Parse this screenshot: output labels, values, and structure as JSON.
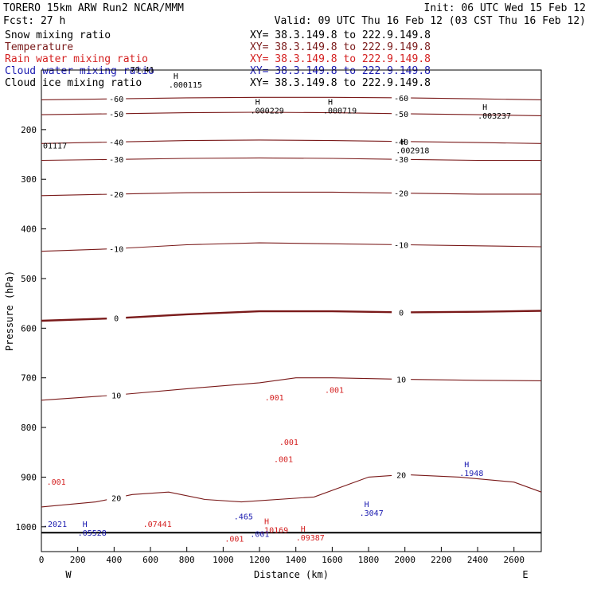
{
  "header": {
    "model": "TORERO  15km ARW   Run2    NCAR/MMM",
    "init": "Init: 06 UTC Wed 15 Feb 12",
    "fcst": "Fcst:   27 h",
    "valid": "Valid: 09 UTC Thu 16 Feb 12 (03 CST Thu 16 Feb 12)"
  },
  "colors": {
    "snow": "#000000",
    "temperature": "#7a1a1a",
    "rain": "#d42020",
    "cloud_water": "#1a1ab0",
    "cloud_ice": "#000000",
    "freezing_line": "#7a1a1a"
  },
  "legend": [
    {
      "name": "Snow mixing ratio",
      "color": "#000000",
      "xy": "XY=  38.3.149.8 to 222.9.149.8"
    },
    {
      "name": "Temperature",
      "color": "#7a1a1a",
      "xy": "XY=  38.3.149.8 to 222.9.149.8"
    },
    {
      "name": "Rain water mixing ratio",
      "color": "#d42020",
      "xy": "XY=  38.3.149.8 to 222.9.149.8"
    },
    {
      "name": "Cloud water mixing ratio",
      "color": "#1a1ab0",
      "xy": "XY=  38.3.149.8 to 222.9.149.8"
    },
    {
      "name": "Cloud ice mixing ratio",
      "color": "#000000",
      "xy": "XY=  38.3.149.8 to 222.9.149.8"
    }
  ],
  "chart_data": {
    "type": "line",
    "xlabel": "Distance (km)",
    "ylabel": "Pressure (hPa)",
    "xlim": [
      0,
      2750
    ],
    "ylim": [
      1050,
      80
    ],
    "x_ticks": [
      0,
      200,
      400,
      600,
      800,
      1000,
      1200,
      1400,
      1600,
      1800,
      2000,
      2200,
      2400,
      2600
    ],
    "y_ticks": [
      200,
      300,
      400,
      500,
      600,
      700,
      800,
      900,
      1000
    ],
    "x_end_labels": {
      "left": "W",
      "right": "E"
    },
    "isotherms": [
      {
        "value": -60,
        "points": [
          [
            0,
            140
          ],
          [
            400,
            138
          ],
          [
            800,
            136
          ],
          [
            1200,
            135
          ],
          [
            1600,
            135
          ],
          [
            2000,
            136
          ],
          [
            2400,
            138
          ],
          [
            2750,
            140
          ]
        ]
      },
      {
        "value": -50,
        "points": [
          [
            0,
            170
          ],
          [
            400,
            168
          ],
          [
            800,
            166
          ],
          [
            1200,
            165
          ],
          [
            1600,
            166
          ],
          [
            2000,
            168
          ],
          [
            2400,
            170
          ],
          [
            2750,
            172
          ]
        ]
      },
      {
        "value": -40,
        "points": [
          [
            0,
            228
          ],
          [
            400,
            225
          ],
          [
            800,
            222
          ],
          [
            1200,
            221
          ],
          [
            1600,
            222
          ],
          [
            2000,
            224
          ],
          [
            2400,
            226
          ],
          [
            2750,
            228
          ]
        ]
      },
      {
        "value": -30,
        "points": [
          [
            0,
            262
          ],
          [
            400,
            260
          ],
          [
            800,
            258
          ],
          [
            1200,
            257
          ],
          [
            1600,
            258
          ],
          [
            2000,
            260
          ],
          [
            2400,
            262
          ],
          [
            2750,
            262
          ]
        ]
      },
      {
        "value": -20,
        "points": [
          [
            0,
            333
          ],
          [
            400,
            330
          ],
          [
            800,
            327
          ],
          [
            1200,
            326
          ],
          [
            1600,
            326
          ],
          [
            2000,
            328
          ],
          [
            2400,
            330
          ],
          [
            2750,
            330
          ]
        ]
      },
      {
        "value": -10,
        "points": [
          [
            0,
            445
          ],
          [
            400,
            440
          ],
          [
            800,
            432
          ],
          [
            1200,
            428
          ],
          [
            1600,
            430
          ],
          [
            2000,
            432
          ],
          [
            2400,
            434
          ],
          [
            2750,
            436
          ]
        ]
      },
      {
        "value": 0,
        "points": [
          [
            0,
            585
          ],
          [
            400,
            580
          ],
          [
            800,
            572
          ],
          [
            1200,
            566
          ],
          [
            1600,
            566
          ],
          [
            2000,
            568
          ],
          [
            2400,
            567
          ],
          [
            2750,
            565
          ]
        ]
      },
      {
        "value": 10,
        "points": [
          [
            0,
            745
          ],
          [
            400,
            735
          ],
          [
            800,
            722
          ],
          [
            1200,
            710
          ],
          [
            1400,
            700
          ],
          [
            1600,
            700
          ],
          [
            2000,
            703
          ],
          [
            2400,
            705
          ],
          [
            2750,
            706
          ]
        ]
      },
      {
        "value": 20,
        "points": [
          [
            0,
            960
          ],
          [
            300,
            950
          ],
          [
            500,
            935
          ],
          [
            700,
            930
          ],
          [
            900,
            945
          ],
          [
            1100,
            950
          ],
          [
            1500,
            940
          ],
          [
            1800,
            900
          ],
          [
            2000,
            895
          ],
          [
            2300,
            900
          ],
          [
            2600,
            910
          ],
          [
            2750,
            930
          ]
        ]
      }
    ],
    "h_labels": [
      {
        "x": 700,
        "p": 98,
        "value": ".000115",
        "color": "#000000"
      },
      {
        "x": 1150,
        "p": 150,
        "value": ".000229",
        "color": "#000000"
      },
      {
        "x": 1550,
        "p": 150,
        "value": ".000719",
        "color": "#000000"
      },
      {
        "x": 2400,
        "p": 160,
        "value": ".003237",
        "color": "#000000"
      },
      {
        "x": 1950,
        "p": 230,
        "value": ".002918",
        "color": "#000000"
      },
      {
        "x": 200,
        "p": 1000,
        "value": ".05528",
        "color": "#1a1ab0"
      },
      {
        "x": 1200,
        "p": 995,
        "value": ".10169",
        "color": "#d42020"
      },
      {
        "x": 1400,
        "p": 1010,
        "value": ".09387",
        "color": "#d42020"
      },
      {
        "x": 1750,
        "p": 960,
        "value": ".3047",
        "color": "#1a1ab0"
      },
      {
        "x": 2300,
        "p": 880,
        "value": ".1948",
        "color": "#1a1ab0"
      }
    ],
    "contour_labels": [
      {
        "x": 480,
        "p": 85,
        "value": "79.41",
        "color": "#000000"
      },
      {
        "x": 0,
        "p": 238,
        "value": "01117",
        "color": "#000000"
      },
      {
        "x": 20,
        "p": 915,
        "value": ".001",
        "color": "#d42020"
      },
      {
        "x": 1220,
        "p": 745,
        "value": ".001",
        "color": "#d42020"
      },
      {
        "x": 1270,
        "p": 870,
        "value": ".001",
        "color": "#d42020"
      },
      {
        "x": 1300,
        "p": 835,
        "value": ".001",
        "color": "#d42020"
      },
      {
        "x": 1550,
        "p": 730,
        "value": ".001",
        "color": "#d42020"
      },
      {
        "x": 1000,
        "p": 1030,
        "value": ".001",
        "color": "#d42020"
      },
      {
        "x": 1140,
        "p": 1020,
        "value": ".001",
        "color": "#1a1ab0"
      },
      {
        "x": 0,
        "p": 1000,
        "value": ".2021",
        "color": "#1a1ab0"
      },
      {
        "x": 550,
        "p": 1000,
        "value": ".07441",
        "color": "#d42020"
      },
      {
        "x": 1050,
        "p": 985,
        "value": ".465",
        "color": "#1a1ab0"
      }
    ]
  }
}
